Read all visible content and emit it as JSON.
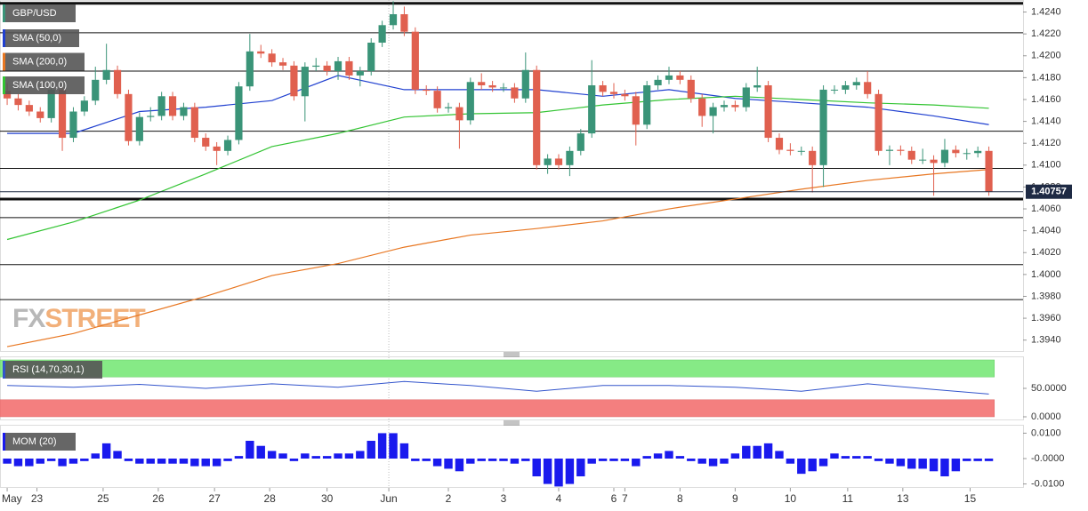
{
  "watermark": {
    "fx": "FX",
    "street": "STREET"
  },
  "chart_data": [
    {
      "type": "candlestick",
      "title": "GBP/USD",
      "up_color": "#3a9478",
      "down_color": "#e0604f",
      "open": [
        1.4168,
        1.4161,
        1.4155,
        1.4149,
        1.4143,
        1.4169,
        1.4125,
        1.4149,
        1.4159,
        1.4178,
        1.4187,
        1.4165,
        1.4122,
        1.4144,
        1.4145,
        1.4163,
        1.4145,
        1.4153,
        1.4125,
        1.4117,
        1.4113,
        1.4123,
        1.4172,
        1.4204,
        1.4202,
        1.4194,
        1.4191,
        1.4163,
        1.419,
        1.4191,
        1.4186,
        1.4195,
        1.4182,
        1.4186,
        1.4212,
        1.4228,
        1.4238,
        1.4222,
        1.4169,
        1.4168,
        1.4152,
        1.4153,
        1.4141,
        1.4176,
        1.4173,
        1.4171,
        1.4171,
        1.4161,
        1.4187,
        1.41,
        1.4106,
        1.41,
        1.4113,
        1.4129,
        1.4173,
        1.4167,
        1.4165,
        1.4163,
        1.4137,
        1.4173,
        1.4178,
        1.4182,
        1.4178,
        1.4161,
        1.4145,
        1.4153,
        1.4155,
        1.4153,
        1.4171,
        1.4173,
        1.4125,
        1.4114,
        1.4113,
        1.4113,
        1.41,
        1.4169,
        1.4169,
        1.4173,
        1.4176,
        1.4165,
        1.4113,
        1.4114,
        1.4113,
        1.4105,
        1.4105,
        1.4102,
        1.4114,
        1.4111,
        1.4111,
        1.4113
      ],
      "high": [
        1.4175,
        1.4165,
        1.4159,
        1.4153,
        1.4173,
        1.4173,
        1.4153,
        1.4163,
        1.419,
        1.4211,
        1.4191,
        1.4169,
        1.4148,
        1.4153,
        1.4167,
        1.4167,
        1.4157,
        1.4157,
        1.4129,
        1.4121,
        1.4127,
        1.4176,
        1.422,
        1.421,
        1.4206,
        1.4198,
        1.4195,
        1.4194,
        1.4198,
        1.4195,
        1.4199,
        1.4199,
        1.419,
        1.4216,
        1.4232,
        1.425,
        1.4245,
        1.4226,
        1.4173,
        1.4172,
        1.4157,
        1.4157,
        1.418,
        1.4184,
        1.4177,
        1.4175,
        1.4175,
        1.4203,
        1.4191,
        1.411,
        1.411,
        1.4117,
        1.4133,
        1.4196,
        1.4177,
        1.4175,
        1.4169,
        1.4167,
        1.4177,
        1.4182,
        1.419,
        1.4186,
        1.4182,
        1.4165,
        1.4157,
        1.4159,
        1.4159,
        1.4175,
        1.419,
        1.4177,
        1.4129,
        1.412,
        1.4117,
        1.4117,
        1.4173,
        1.4173,
        1.4177,
        1.418,
        1.4186,
        1.4169,
        1.4118,
        1.4118,
        1.4117,
        1.4115,
        1.4109,
        1.4124,
        1.4118,
        1.4115,
        1.4117,
        1.4117
      ],
      "low": [
        1.4155,
        1.415,
        1.4145,
        1.4139,
        1.4139,
        1.4113,
        1.4121,
        1.4145,
        1.4155,
        1.4174,
        1.4161,
        1.4118,
        1.4118,
        1.414,
        1.4141,
        1.4141,
        1.4141,
        1.4121,
        1.4113,
        1.41,
        1.4109,
        1.4119,
        1.4168,
        1.4198,
        1.419,
        1.4187,
        1.4159,
        1.414,
        1.4186,
        1.4182,
        1.4178,
        1.4178,
        1.4172,
        1.4182,
        1.4208,
        1.4224,
        1.4218,
        1.4165,
        1.4164,
        1.4148,
        1.4148,
        1.4115,
        1.4137,
        1.4169,
        1.4167,
        1.4167,
        1.4157,
        1.4157,
        1.4096,
        1.4092,
        1.4096,
        1.409,
        1.4109,
        1.4125,
        1.4163,
        1.4161,
        1.4159,
        1.4118,
        1.4133,
        1.4169,
        1.4174,
        1.4174,
        1.4157,
        1.4135,
        1.4129,
        1.4149,
        1.4149,
        1.4149,
        1.4167,
        1.4121,
        1.411,
        1.4109,
        1.4109,
        1.4075,
        1.408,
        1.4165,
        1.4165,
        1.4169,
        1.4161,
        1.4109,
        1.41,
        1.4109,
        1.4101,
        1.4101,
        1.4072,
        1.4098,
        1.4107,
        1.4105,
        1.4107,
        1.4072
      ],
      "close": [
        1.4161,
        1.4155,
        1.4149,
        1.4143,
        1.4169,
        1.4125,
        1.4149,
        1.4159,
        1.4178,
        1.4187,
        1.4165,
        1.4122,
        1.4144,
        1.4145,
        1.4163,
        1.4145,
        1.4153,
        1.4125,
        1.4117,
        1.4113,
        1.4123,
        1.4172,
        1.4204,
        1.4202,
        1.4194,
        1.4191,
        1.4163,
        1.419,
        1.4191,
        1.4186,
        1.4195,
        1.4182,
        1.4186,
        1.4212,
        1.4228,
        1.4238,
        1.4222,
        1.4169,
        1.4168,
        1.4152,
        1.4153,
        1.4141,
        1.4176,
        1.4173,
        1.4171,
        1.4171,
        1.4161,
        1.4187,
        1.41,
        1.4106,
        1.41,
        1.4113,
        1.4129,
        1.4173,
        1.4167,
        1.4165,
        1.4163,
        1.4137,
        1.4173,
        1.4178,
        1.4182,
        1.4178,
        1.4161,
        1.4145,
        1.4153,
        1.4155,
        1.4153,
        1.4171,
        1.4173,
        1.4125,
        1.4114,
        1.4113,
        1.4113,
        1.41,
        1.4169,
        1.4169,
        1.4173,
        1.4176,
        1.4165,
        1.4113,
        1.4114,
        1.4113,
        1.4105,
        1.4105,
        1.4102,
        1.4114,
        1.4111,
        1.4111,
        1.4113,
        1.40757
      ],
      "last_price_color": "#1e2a44",
      "indicators": [
        {
          "name": "SMA (50,0)",
          "color": "#2040d0",
          "x": [
            0,
            6,
            12,
            18,
            24,
            30,
            36,
            42,
            48,
            54,
            60,
            66,
            72,
            78,
            84,
            89
          ],
          "values": [
            1.4129,
            1.4129,
            1.4149,
            1.4153,
            1.4159,
            1.4182,
            1.4169,
            1.4169,
            1.4169,
            1.4163,
            1.4169,
            1.4161,
            1.4157,
            1.4153,
            1.4145,
            1.4137
          ]
        },
        {
          "name": "SMA (200,0)",
          "color": "#e87722",
          "x": [
            0,
            6,
            12,
            18,
            24,
            30,
            36,
            42,
            48,
            54,
            60,
            66,
            72,
            78,
            84,
            89
          ],
          "values": [
            1.3934,
            1.3946,
            1.3963,
            1.398,
            1.3999,
            1.401,
            1.4025,
            1.4036,
            1.4042,
            1.4049,
            1.406,
            1.4069,
            1.4078,
            1.4086,
            1.4092,
            1.4096
          ]
        },
        {
          "name": "SMA (100,0)",
          "color": "#33c433",
          "x": [
            0,
            6,
            12,
            18,
            24,
            30,
            36,
            42,
            48,
            54,
            60,
            66,
            72,
            78,
            84,
            89
          ],
          "values": [
            1.4032,
            1.4048,
            1.4068,
            1.4092,
            1.4117,
            1.4129,
            1.4144,
            1.4147,
            1.4148,
            1.4155,
            1.416,
            1.4163,
            1.416,
            1.4157,
            1.4155,
            1.4152
          ]
        }
      ],
      "levels": [
        {
          "value": 1.4248,
          "bold": true
        },
        {
          "value": 1.4221,
          "bold": false
        },
        {
          "value": 1.4186,
          "bold": false
        },
        {
          "value": 1.4131,
          "bold": false
        },
        {
          "value": 1.4097,
          "bold": false
        },
        {
          "value": 1.4069,
          "bold": true
        },
        {
          "value": 1.4052,
          "bold": false
        },
        {
          "value": 1.4009,
          "bold": false
        },
        {
          "value": 1.3977,
          "bold": false
        }
      ],
      "ylim": [
        1.393,
        1.4251
      ],
      "yticks": [
        {
          "value": 1.394,
          "label": "1.3940"
        },
        {
          "value": 1.396,
          "label": "1.3960"
        },
        {
          "value": 1.398,
          "label": "1.3980"
        },
        {
          "value": 1.4,
          "label": "1.4000"
        },
        {
          "value": 1.402,
          "label": "1.4020"
        },
        {
          "value": 1.404,
          "label": "1.4040"
        },
        {
          "value": 1.406,
          "label": "1.4060"
        },
        {
          "value": 1.408,
          "label": "1.4080"
        },
        {
          "value": 1.41,
          "label": "1.4100"
        },
        {
          "value": 1.412,
          "label": "1.4120"
        },
        {
          "value": 1.414,
          "label": "1.4140"
        },
        {
          "value": 1.416,
          "label": "1.4160"
        },
        {
          "value": 1.418,
          "label": "1.4180"
        },
        {
          "value": 1.42,
          "label": "1.4200"
        },
        {
          "value": 1.422,
          "label": "1.4220"
        },
        {
          "value": 1.424,
          "label": "1.4240"
        }
      ],
      "xlim": [
        -0.65,
        92.1
      ],
      "xticks": [
        {
          "value": 0,
          "label": "May"
        },
        {
          "value": 2.7,
          "label": "23"
        },
        {
          "value": 8.7,
          "label": "25"
        },
        {
          "value": 13.7,
          "label": "26"
        },
        {
          "value": 18.8,
          "label": "27"
        },
        {
          "value": 23.8,
          "label": "28"
        },
        {
          "value": 29,
          "label": "30"
        },
        {
          "value": 34.6,
          "label": "Jun"
        },
        {
          "value": 40,
          "label": "2"
        },
        {
          "value": 45,
          "label": "3"
        },
        {
          "value": 50,
          "label": "4"
        },
        {
          "value": 55,
          "label": "6"
        },
        {
          "value": 56,
          "label": "7"
        },
        {
          "value": 61,
          "label": "8"
        },
        {
          "value": 66,
          "label": "9"
        },
        {
          "value": 71,
          "label": "10"
        },
        {
          "value": 76.2,
          "label": "11"
        },
        {
          "value": 81.2,
          "label": "13"
        },
        {
          "value": 87.3,
          "label": "15"
        }
      ]
    },
    {
      "type": "line",
      "title": "RSI (14,70,30,1)",
      "color": "#3355cc",
      "x": [
        0,
        6,
        12,
        18,
        24,
        30,
        36,
        42,
        48,
        54,
        60,
        66,
        72,
        78,
        84,
        89
      ],
      "values": [
        55,
        52,
        57,
        50,
        58,
        52,
        62,
        55,
        45,
        55,
        55,
        52,
        45,
        58,
        48,
        40
      ],
      "upper": 70,
      "lower": 30,
      "upper_color": "#86ea86",
      "lower_color": "#f47f7f",
      "ylim": [
        -4.7,
        103.1
      ],
      "yticks": [
        {
          "value": 50,
          "label": "50.0000"
        },
        {
          "value": 0,
          "label": "0.0000"
        }
      ]
    },
    {
      "type": "bar",
      "title": "MOM (20)",
      "color": "#1a1aee",
      "values": [
        -0.002,
        -0.003,
        -0.003,
        -0.002,
        -0.001,
        -0.003,
        -0.002,
        -0.001,
        0.002,
        0.006,
        0.003,
        -0.001,
        -0.002,
        -0.002,
        -0.002,
        -0.002,
        -0.002,
        -0.003,
        -0.003,
        -0.003,
        -0.001,
        0.001,
        0.007,
        0.005,
        0.003,
        0.002,
        -0.001,
        0.002,
        0.001,
        0.001,
        0.002,
        0.002,
        0.003,
        0.007,
        0.01,
        0.01,
        0.006,
        -0.001,
        -0.001,
        -0.003,
        -0.004,
        -0.005,
        -0.002,
        -0.001,
        -0.001,
        -0.001,
        -0.002,
        -0.001,
        -0.007,
        -0.01,
        -0.011,
        -0.01,
        -0.007,
        -0.002,
        -0.001,
        -0.001,
        -0.001,
        -0.003,
        0.001,
        0.002,
        0.003,
        0.001,
        -0.001,
        -0.002,
        -0.003,
        -0.002,
        0.002,
        0.005,
        0.005,
        0.006,
        0.003,
        -0.002,
        -0.006,
        -0.005,
        -0.003,
        0.002,
        0.001,
        0.001,
        0.001,
        -0.001,
        -0.002,
        -0.003,
        -0.004,
        -0.004,
        -0.005,
        -0.007,
        -0.005,
        -0.001,
        -0.001,
        -0.001
      ],
      "ylim": [
        -0.0112,
        0.0126
      ],
      "yticks": [
        {
          "value": 0.01,
          "label": "0.0100"
        },
        {
          "value": 0,
          "label": "-0.0000"
        },
        {
          "value": -0.01,
          "label": "-0.0100"
        }
      ]
    }
  ]
}
